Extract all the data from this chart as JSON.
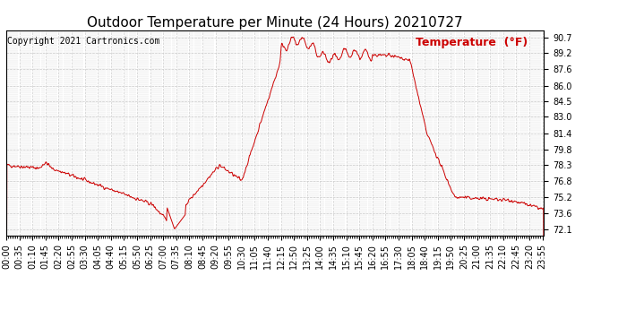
{
  "title": "Outdoor Temperature per Minute (24 Hours) 20210727",
  "copyright_text": "Copyright 2021 Cartronics.com",
  "legend_label": "Temperature  (°F)",
  "line_color": "#cc0000",
  "background_color": "#ffffff",
  "grid_color": "#cccccc",
  "yticks": [
    72.1,
    73.6,
    75.2,
    76.8,
    78.3,
    79.8,
    81.4,
    83.0,
    84.5,
    86.0,
    87.6,
    89.2,
    90.7
  ],
  "ylim": [
    71.5,
    91.4
  ],
  "xlim": [
    0,
    1439
  ],
  "xtick_positions": [
    0,
    35,
    70,
    105,
    140,
    175,
    210,
    245,
    280,
    315,
    350,
    385,
    420,
    455,
    490,
    525,
    560,
    595,
    630,
    665,
    700,
    735,
    770,
    805,
    840,
    875,
    910,
    945,
    980,
    1015,
    1050,
    1085,
    1120,
    1155,
    1190,
    1225,
    1260,
    1295,
    1330,
    1365,
    1400,
    1435
  ],
  "xtick_labels": [
    "00:00",
    "00:35",
    "01:10",
    "01:45",
    "02:20",
    "02:55",
    "03:30",
    "04:05",
    "04:40",
    "05:15",
    "05:50",
    "06:25",
    "07:00",
    "07:35",
    "08:10",
    "08:45",
    "09:20",
    "09:55",
    "10:30",
    "11:05",
    "11:40",
    "12:15",
    "12:50",
    "13:25",
    "14:00",
    "14:35",
    "15:10",
    "15:45",
    "16:20",
    "16:55",
    "17:30",
    "18:05",
    "18:40",
    "19:15",
    "19:50",
    "20:25",
    "21:00",
    "21:35",
    "22:10",
    "22:45",
    "23:20",
    "23:55"
  ],
  "title_fontsize": 11,
  "axis_fontsize": 7,
  "copyright_fontsize": 7,
  "legend_fontsize": 9
}
